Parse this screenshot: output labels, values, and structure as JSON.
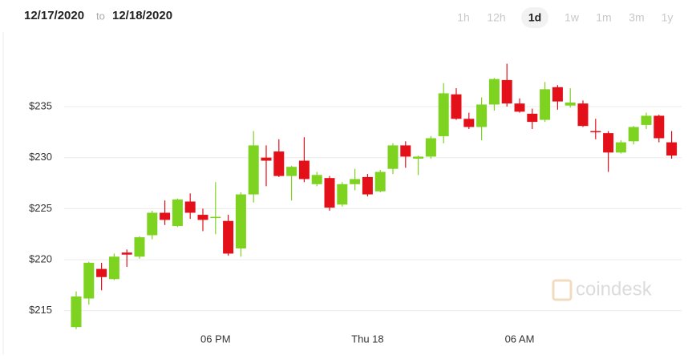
{
  "header": {
    "from": "12/17/2020",
    "to_word": "to",
    "to": "12/18/2020",
    "ranges": [
      "1h",
      "12h",
      "1d",
      "1w",
      "1m",
      "3m",
      "1y"
    ],
    "selected": 2
  },
  "watermark": "coindesk",
  "chart_data": {
    "type": "candlestick",
    "categories": [
      null,
      null,
      null,
      null,
      null,
      null,
      null,
      null,
      null,
      null,
      null,
      "06 PM",
      null,
      null,
      null,
      null,
      null,
      null,
      null,
      null,
      null,
      null,
      null,
      "Thu 18",
      null,
      null,
      null,
      null,
      null,
      null,
      null,
      null,
      null,
      null,
      null,
      "06 AM",
      null,
      null,
      null,
      null,
      null,
      null,
      null,
      null,
      null,
      null,
      null,
      null
    ],
    "open": [
      213.4,
      216.2,
      219.1,
      218.1,
      220.7,
      220.3,
      222.4,
      224.6,
      223.3,
      225.7,
      224.4,
      224.2,
      223.8,
      221.1,
      226.4,
      230.0,
      230.6,
      228.2,
      229.7,
      227.4,
      228.0,
      225.4,
      227.4,
      228.1,
      226.7,
      228.9,
      231.2,
      229.9,
      230.1,
      232.1,
      236.2,
      233.8,
      233.0,
      235.2,
      237.6,
      235.3,
      234.3,
      233.7,
      236.9,
      235.1,
      235.3,
      232.6,
      232.4,
      230.5,
      231.6,
      233.2,
      234.1,
      231.5
    ],
    "high": [
      216.9,
      219.8,
      219.7,
      220.6,
      221.0,
      222.3,
      224.8,
      225.8,
      226.0,
      226.5,
      225.0,
      227.6,
      224.4,
      226.6,
      232.6,
      231.2,
      231.8,
      229.2,
      232.0,
      228.6,
      228.2,
      227.6,
      228.9,
      228.4,
      228.8,
      231.4,
      231.6,
      230.2,
      232.1,
      237.3,
      236.8,
      234.4,
      235.9,
      237.8,
      239.2,
      235.8,
      234.8,
      237.4,
      237.1,
      236.8,
      235.6,
      233.8,
      232.6,
      231.7,
      233.1,
      234.4,
      234.2,
      232.6
    ],
    "low": [
      213.2,
      215.6,
      217.0,
      218.0,
      219.3,
      220.1,
      222.0,
      223.4,
      223.2,
      224.0,
      222.8,
      222.5,
      220.4,
      220.3,
      225.6,
      227.2,
      228.1,
      225.8,
      227.6,
      227.2,
      224.8,
      225.2,
      226.8,
      226.2,
      226.6,
      228.4,
      229.0,
      228.3,
      229.9,
      231.4,
      233.7,
      232.8,
      231.7,
      234.6,
      235.0,
      234.4,
      232.8,
      233.5,
      234.7,
      234.9,
      233.0,
      231.8,
      228.6,
      230.4,
      231.3,
      232.8,
      231.5,
      229.9
    ],
    "close": [
      216.4,
      219.7,
      218.3,
      220.3,
      220.5,
      222.2,
      224.6,
      223.9,
      225.9,
      224.6,
      223.9,
      224.2,
      220.6,
      226.4,
      231.2,
      229.7,
      228.2,
      229.1,
      227.9,
      228.3,
      225.1,
      227.4,
      227.9,
      226.4,
      228.6,
      231.2,
      230.1,
      230.1,
      231.9,
      236.3,
      233.8,
      233.0,
      235.2,
      237.7,
      235.3,
      234.5,
      233.5,
      236.7,
      235.5,
      235.4,
      233.1,
      232.5,
      230.5,
      231.5,
      233.0,
      234.1,
      231.9,
      230.2
    ],
    "up_color": "#7ed321",
    "down_color": "#e3101a",
    "ylim": [
      213.1,
      242.3
    ],
    "yticks": [
      {
        "value": 215,
        "label": "$215"
      },
      {
        "value": 220,
        "label": "$220"
      },
      {
        "value": 225,
        "label": "$225"
      },
      {
        "value": 230,
        "label": "$230"
      },
      {
        "value": 235,
        "label": "$235"
      }
    ],
    "grid": true
  }
}
